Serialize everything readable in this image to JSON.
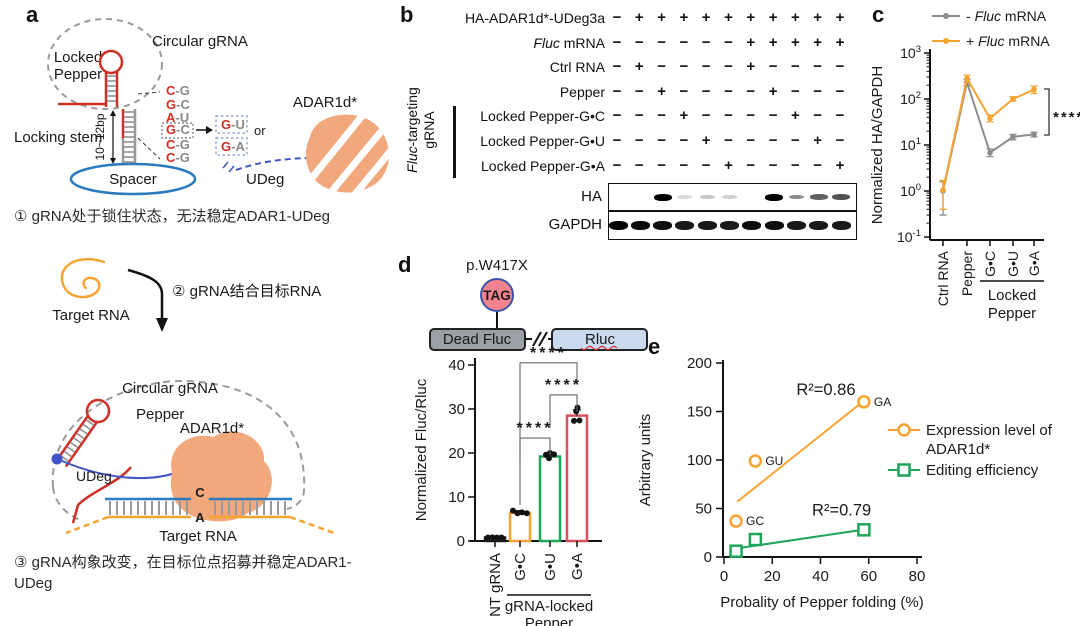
{
  "colors": {
    "orange": "#F6A431",
    "green": "#1FA65A",
    "red": "#D9515C",
    "gray_series": "#8C8C8C",
    "pepper_red": "#CE2F26",
    "spacer_blue": "#2B7BBF",
    "udeg_blue": "#4156C5",
    "adar_blob": "#F0A87C",
    "gray_dash": "#9A9A9A",
    "tag_pink": "#F2838F",
    "tag_border": "#3D55A8",
    "deadfluc_gray": "#9AA0A6",
    "rluc_blue": "#C9DAEF",
    "squiggle_red": "#E03131"
  },
  "panels": {
    "a": {
      "label": "a",
      "circular_grna": "Circular gRNA",
      "locked": "Locked",
      "pepper_word": "Pepper",
      "locking_stem": "Locking stem",
      "stem_len": "10~12bp",
      "spacer": "Spacer",
      "base_pairs": [
        "C-G",
        "G-C",
        "A-U",
        "G-C",
        "C-G",
        "C-G"
      ],
      "boxed_index": 3,
      "mutants": [
        "G-U",
        "G-A"
      ],
      "or": "or",
      "adar": "ADAR1d*",
      "udeg": "UDeg",
      "step1": "① gRNA处于锁住状态，无法稳定ADAR1-UDeg",
      "step2": "② gRNA结合目标RNA",
      "target_rna": "Target RNA",
      "bottom": {
        "circular_grna": "Circular gRNA",
        "pepper": "Pepper",
        "adar": "ADAR1d*",
        "udeg": "UDeg",
        "target_rna": "Target RNA",
        "edit_from": "C",
        "edit_to": "A"
      },
      "step3": "③ gRNA构象改变，在目标位点招募并稳定ADAR1-UDeg"
    },
    "b": {
      "label": "b",
      "group_label_lines": [
        "Fluc-targeting",
        "gRNA"
      ],
      "rows": [
        {
          "label": "HA-ADAR1d*-UDeg3a",
          "signs": [
            "−",
            "+",
            "+",
            "+",
            "+",
            "+",
            "+",
            "+",
            "+",
            "+",
            "+"
          ]
        },
        {
          "label": "Fluc mRNA",
          "signs": [
            "−",
            "−",
            "−",
            "−",
            "−",
            "−",
            "+",
            "+",
            "+",
            "+",
            "+"
          ]
        },
        {
          "label": "Ctrl RNA",
          "signs": [
            "−",
            "+",
            "−",
            "−",
            "−",
            "−",
            "+",
            "−",
            "−",
            "−",
            "−"
          ]
        },
        {
          "label": "Pepper",
          "signs": [
            "−",
            "−",
            "+",
            "−",
            "−",
            "−",
            "−",
            "+",
            "−",
            "−",
            "−"
          ]
        },
        {
          "label": "Locked Pepper-G•C",
          "signs": [
            "−",
            "−",
            "−",
            "+",
            "−",
            "−",
            "−",
            "−",
            "+",
            "−",
            "−"
          ]
        },
        {
          "label": "Locked Pepper-G•U",
          "signs": [
            "−",
            "−",
            "−",
            "−",
            "+",
            "−",
            "−",
            "−",
            "−",
            "+",
            "−"
          ]
        },
        {
          "label": "Locked Pepper-G•A",
          "signs": [
            "−",
            "−",
            "−",
            "−",
            "−",
            "+",
            "−",
            "−",
            "−",
            "−",
            "+"
          ]
        }
      ],
      "blots": [
        {
          "label": "HA",
          "bands": [
            0,
            0,
            1,
            0.15,
            0.22,
            0.18,
            0,
            1,
            0.45,
            0.62,
            0.68
          ]
        },
        {
          "label": "GAPDH",
          "bands": [
            1,
            0.95,
            0.95,
            0.9,
            0.9,
            0.9,
            0.95,
            0.95,
            0.9,
            0.9,
            0.9
          ]
        }
      ]
    },
    "c": {
      "label": "c"
    },
    "d": {
      "label": "d",
      "schematic": {
        "mutation": "p.W417X",
        "codon": "TAG",
        "left_box": "Dead Fluc",
        "right_box": "Rluc"
      }
    },
    "e": {
      "label": "e"
    }
  },
  "chart_data": [
    {
      "id": "c",
      "type": "line",
      "yscale": "log",
      "ylabel": "Normalized HA/GAPDH",
      "ylim": [
        0.1,
        1000
      ],
      "categories": [
        "Ctrl RNA",
        "Pepper",
        "G•C",
        "G•U",
        "G•A"
      ],
      "series": [
        {
          "name": "- Fluc mRNA",
          "color": "#8C8C8C",
          "values": [
            1.0,
            230,
            6.8,
            15,
            17
          ],
          "err_lo": [
            0.3,
            195,
            5.6,
            13,
            15
          ],
          "err_hi": [
            1.6,
            265,
            8.2,
            17,
            19
          ]
        },
        {
          "name": "+ Fluc mRNA",
          "color": "#F6A431",
          "values": [
            1.05,
            280,
            38,
            100,
            160
          ],
          "err_lo": [
            0.4,
            235,
            32,
            90,
            132
          ],
          "err_hi": [
            1.7,
            330,
            45,
            112,
            190
          ]
        }
      ],
      "group_label": [
        "Locked",
        "Pepper"
      ],
      "group_span": [
        2,
        4
      ],
      "significance": "****",
      "legend_position": "top"
    },
    {
      "id": "d",
      "type": "bar",
      "ylabel": "Normalized Fluc/Rluc",
      "ylim": [
        0,
        40
      ],
      "yticks": [
        0,
        10,
        20,
        30,
        40
      ],
      "categories": [
        "NT gRNA",
        "G•C",
        "G•U",
        "G•A"
      ],
      "values": [
        0.8,
        6.4,
        19.2,
        28.5
      ],
      "errors": [
        0.15,
        0.5,
        0.6,
        1.3
      ],
      "bar_colors": [
        "#1A1A1A",
        "#F6A431",
        "#1FA65A",
        "#D9515C"
      ],
      "points": [
        [
          [
            -7,
            0.8
          ],
          [
            -2.5,
            0.82
          ],
          [
            2,
            0.78
          ],
          [
            6.5,
            0.8
          ]
        ],
        [
          [
            -7,
            6.9
          ],
          [
            -2.5,
            6.3
          ],
          [
            2,
            6.5
          ],
          [
            6.8,
            6.3
          ]
        ],
        [
          [
            -4,
            19.6
          ],
          [
            0,
            20.0
          ],
          [
            4,
            19.7
          ],
          [
            -1,
            18.8
          ]
        ],
        [
          [
            -3,
            27.3
          ],
          [
            2.5,
            27.4
          ],
          [
            0.5,
            30.3
          ],
          [
            -0.8,
            29.5
          ]
        ]
      ],
      "group_label": [
        "gRNA-locked",
        "Pepper"
      ],
      "group_span": [
        1,
        3
      ],
      "sig_brackets": [
        {
          "from": 1,
          "to": 3,
          "y": 40.5,
          "stars": "****",
          "legs": [
            100,
            20
          ]
        },
        {
          "from": 2,
          "to": 3,
          "y": 33.2,
          "stars": "****",
          "legs": [
            33,
            17
          ]
        },
        {
          "from": 1,
          "to": 2,
          "y": 23.4,
          "stars": "****",
          "legs": [
            67,
            17
          ]
        }
      ]
    },
    {
      "id": "e",
      "type": "scatter",
      "xlabel": "Probality of Pepper folding (%)",
      "ylabel": "Arbitrary units",
      "xlim": [
        0,
        80
      ],
      "xticks": [
        0,
        20,
        40,
        60,
        80
      ],
      "ylim": [
        0,
        200
      ],
      "yticks": [
        0,
        50,
        100,
        150,
        200
      ],
      "series": [
        {
          "name": "Expression level of ADAR1d*",
          "legend_lines": [
            "Expression level of",
            "ADAR1d*"
          ],
          "marker": "circle",
          "color": "#F6A431",
          "points": [
            {
              "x": 5,
              "y": 37,
              "label": "GC"
            },
            {
              "x": 13,
              "y": 99,
              "label": "GU"
            },
            {
              "x": 58,
              "y": 160,
              "label": "GA"
            }
          ],
          "fit_line": {
            "x1": 5.5,
            "y1": 57,
            "x2": 59,
            "y2": 163
          },
          "r2_label": "R²=0.86",
          "r2_x": 30,
          "r2_y": 167
        },
        {
          "name": "Editing efficiency",
          "legend_lines": [
            "Editing efficiency"
          ],
          "marker": "square",
          "color": "#1FA65A",
          "points": [
            {
              "x": 5,
              "y": 6
            },
            {
              "x": 13,
              "y": 18
            },
            {
              "x": 58,
              "y": 28
            }
          ],
          "fit_line": {
            "x1": 3,
            "y1": 8,
            "x2": 60,
            "y2": 29
          },
          "r2_label": "R²=0.79",
          "r2_x": 36.5,
          "r2_y": 43
        }
      ]
    }
  ]
}
